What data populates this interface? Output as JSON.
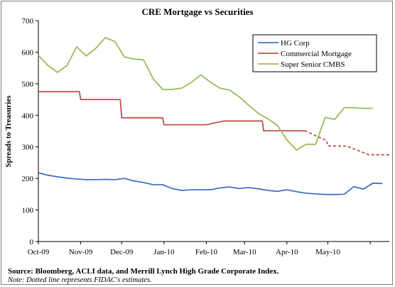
{
  "chart_data": {
    "type": "line",
    "title": "CRE Mortgage vs Securities",
    "ylabel": "Spreads to Treasuries",
    "xlabel": "",
    "ylim": [
      0,
      700
    ],
    "yticks": [
      0,
      100,
      200,
      300,
      400,
      500,
      600,
      700
    ],
    "x_tick_labels": [
      "Oct-09",
      "Nov-09",
      "Dec-09",
      "Jan-10",
      "Feb-10",
      "Mar-10",
      "Apr-10",
      "May-10"
    ],
    "grid": false,
    "legend_position": "top-right",
    "colors": {
      "HG Corp": "#4472c4",
      "Commercial Mortgage": "#c0504d",
      "Super Senior CMBS": "#9bbb59"
    },
    "series": [
      {
        "name": "HG Corp",
        "points": [
          [
            "2009-10-01",
            218
          ],
          [
            "2009-10-08",
            210
          ],
          [
            "2009-10-15",
            205
          ],
          [
            "2009-10-22",
            201
          ],
          [
            "2009-10-29",
            198
          ],
          [
            "2009-11-05",
            196
          ],
          [
            "2009-11-12",
            196
          ],
          [
            "2009-11-19",
            197
          ],
          [
            "2009-11-26",
            196
          ],
          [
            "2009-12-03",
            200
          ],
          [
            "2009-12-10",
            192
          ],
          [
            "2009-12-17",
            187
          ],
          [
            "2009-12-24",
            180
          ],
          [
            "2009-12-31",
            180
          ],
          [
            "2010-01-07",
            168
          ],
          [
            "2010-01-14",
            162
          ],
          [
            "2010-01-21",
            164
          ],
          [
            "2010-01-28",
            164
          ],
          [
            "2010-02-04",
            164
          ],
          [
            "2010-02-11",
            170
          ],
          [
            "2010-02-18",
            173
          ],
          [
            "2010-02-25",
            168
          ],
          [
            "2010-03-04",
            171
          ],
          [
            "2010-03-11",
            167
          ],
          [
            "2010-03-18",
            162
          ],
          [
            "2010-03-25",
            159
          ],
          [
            "2010-04-01",
            164
          ],
          [
            "2010-04-08",
            158
          ],
          [
            "2010-04-15",
            153
          ],
          [
            "2010-04-22",
            151
          ],
          [
            "2010-04-29",
            149
          ],
          [
            "2010-05-06",
            149
          ],
          [
            "2010-05-13",
            150
          ],
          [
            "2010-05-20",
            174
          ],
          [
            "2010-05-27",
            166
          ],
          [
            "2010-06-03",
            185
          ],
          [
            "2010-06-10",
            184
          ]
        ]
      },
      {
        "name": "Commercial Mortgage",
        "points": [
          [
            "2009-10-01",
            475
          ],
          [
            "2009-10-31",
            475
          ],
          [
            "2009-11-01",
            450
          ],
          [
            "2009-11-30",
            450
          ],
          [
            "2009-12-01",
            392
          ],
          [
            "2009-12-31",
            392
          ],
          [
            "2010-01-01",
            370
          ],
          [
            "2010-01-31",
            370
          ],
          [
            "2010-02-01",
            370
          ],
          [
            "2010-02-14",
            382
          ],
          [
            "2010-02-28",
            382
          ],
          [
            "2010-03-14",
            382
          ],
          [
            "2010-03-15",
            351
          ],
          [
            "2010-03-31",
            351
          ],
          [
            "2010-04-14",
            351
          ]
        ],
        "estimated_points": [
          [
            "2010-04-14",
            351
          ],
          [
            "2010-04-30",
            320
          ],
          [
            "2010-05-01",
            303
          ],
          [
            "2010-05-15",
            302
          ],
          [
            "2010-05-31",
            275
          ],
          [
            "2010-06-15",
            275
          ]
        ]
      },
      {
        "name": "Super Senior CMBS",
        "points": [
          [
            "2009-10-01",
            590
          ],
          [
            "2009-10-08",
            558
          ],
          [
            "2009-10-15",
            536
          ],
          [
            "2009-10-22",
            558
          ],
          [
            "2009-10-29",
            617
          ],
          [
            "2009-11-05",
            588
          ],
          [
            "2009-11-12",
            612
          ],
          [
            "2009-11-19",
            646
          ],
          [
            "2009-11-26",
            634
          ],
          [
            "2009-12-03",
            585
          ],
          [
            "2009-12-10",
            578
          ],
          [
            "2009-12-17",
            576
          ],
          [
            "2009-12-24",
            516
          ],
          [
            "2009-12-31",
            482
          ],
          [
            "2010-01-07",
            482
          ],
          [
            "2010-01-14",
            486
          ],
          [
            "2010-01-21",
            504
          ],
          [
            "2010-01-28",
            528
          ],
          [
            "2010-02-04",
            505
          ],
          [
            "2010-02-11",
            486
          ],
          [
            "2010-02-18",
            480
          ],
          [
            "2010-02-25",
            459
          ],
          [
            "2010-03-04",
            432
          ],
          [
            "2010-03-11",
            406
          ],
          [
            "2010-03-18",
            389
          ],
          [
            "2010-03-25",
            368
          ],
          [
            "2010-04-01",
            322
          ],
          [
            "2010-04-08",
            290
          ],
          [
            "2010-04-15",
            308
          ],
          [
            "2010-04-22",
            308
          ],
          [
            "2010-04-29",
            393
          ],
          [
            "2010-05-06",
            387
          ],
          [
            "2010-05-13",
            424
          ],
          [
            "2010-05-20",
            424
          ],
          [
            "2010-05-27",
            422
          ],
          [
            "2010-06-03",
            422
          ]
        ]
      }
    ]
  },
  "source_text": "Source: Bloomberg, ACLI data, and Merrill Lynch High Grade Corporate Index.",
  "note_text": "Note: Dotted line represents FIDAC's estimates."
}
